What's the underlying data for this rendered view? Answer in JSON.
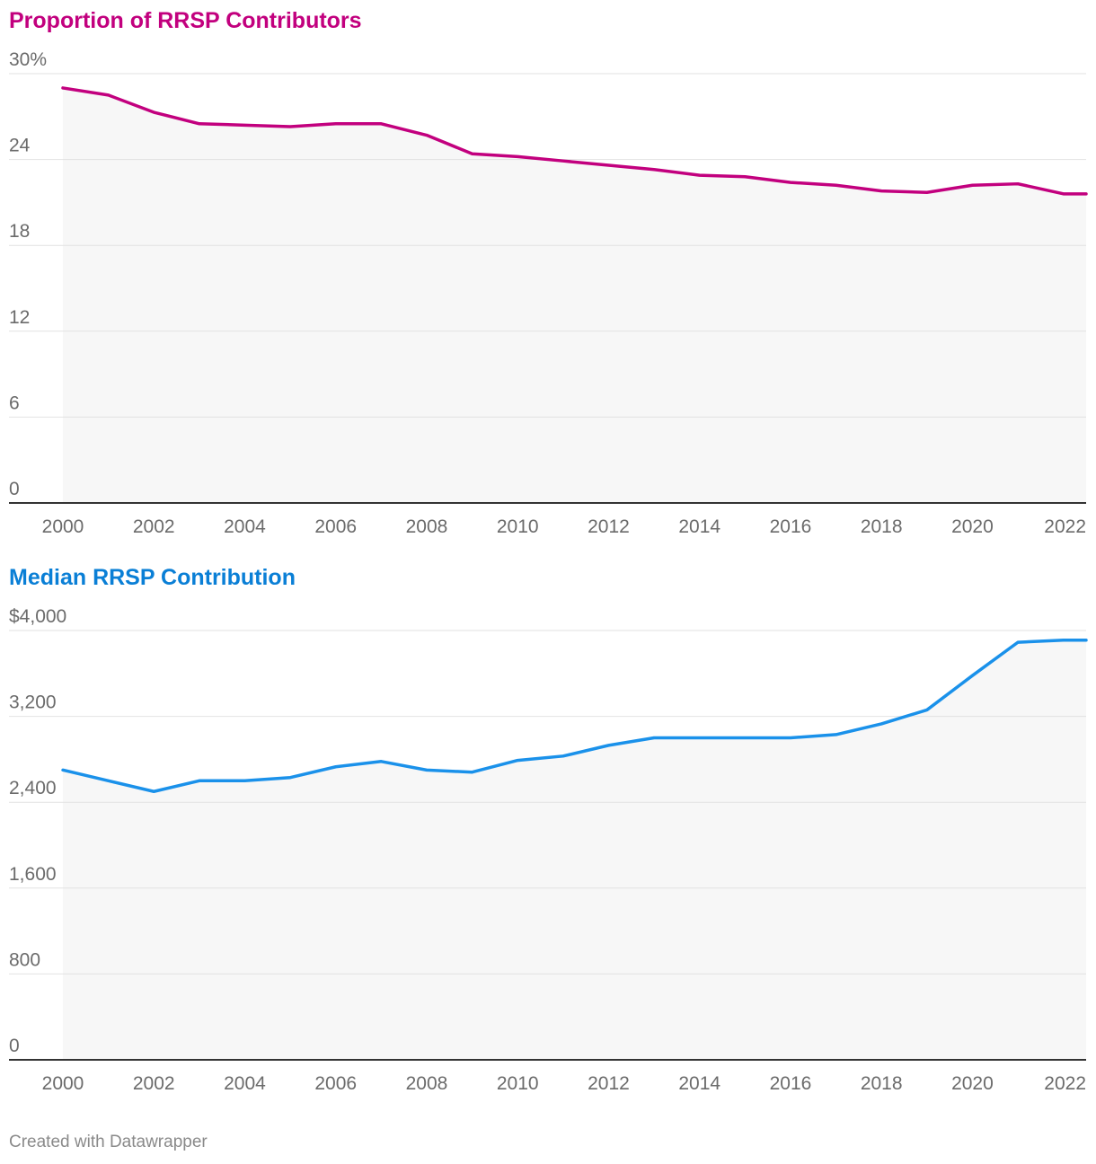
{
  "charts": [
    {
      "type": "line",
      "title": "Proportion of RRSP Contributors",
      "color": "#c2007e",
      "area_fill": "#f7f7f7",
      "x": [
        2000,
        2001,
        2002,
        2003,
        2004,
        2005,
        2006,
        2007,
        2008,
        2009,
        2010,
        2011,
        2012,
        2013,
        2014,
        2015,
        2016,
        2017,
        2018,
        2019,
        2020,
        2021,
        2022
      ],
      "series": [
        {
          "name": "Proportion of RRSP Contributors",
          "values": [
            29.0,
            28.5,
            27.3,
            26.5,
            26.4,
            26.3,
            26.5,
            26.5,
            25.7,
            24.4,
            24.2,
            23.9,
            23.6,
            23.3,
            22.9,
            22.8,
            22.4,
            22.2,
            21.8,
            21.7,
            22.2,
            22.3,
            21.6
          ]
        }
      ],
      "ylim": [
        0,
        30
      ],
      "y_ticks": [
        0,
        6,
        12,
        18,
        24,
        30
      ],
      "y_tick_labels": [
        "0",
        "6",
        "12",
        "18",
        "24",
        "30%"
      ],
      "x_ticks": [
        2000,
        2002,
        2004,
        2006,
        2008,
        2010,
        2012,
        2014,
        2016,
        2018,
        2020,
        2022
      ],
      "x_tick_labels": [
        "2000",
        "2002",
        "2004",
        "2006",
        "2008",
        "2010",
        "2012",
        "2014",
        "2016",
        "2018",
        "2020",
        "2022"
      ],
      "xlabel": "",
      "ylabel": "",
      "grid": true
    },
    {
      "type": "line",
      "title": "Median RRSP Contribution",
      "color": "#1a91ea",
      "area_fill": "#f7f7f7",
      "x": [
        2000,
        2001,
        2002,
        2003,
        2004,
        2005,
        2006,
        2007,
        2008,
        2009,
        2010,
        2011,
        2012,
        2013,
        2014,
        2015,
        2016,
        2017,
        2018,
        2019,
        2020,
        2021,
        2022
      ],
      "series": [
        {
          "name": "Median RRSP Contribution",
          "values": [
            2700,
            2600,
            2500,
            2600,
            2600,
            2630,
            2730,
            2780,
            2700,
            2680,
            2790,
            2830,
            2930,
            3000,
            3000,
            3000,
            3000,
            3030,
            3130,
            3260,
            3580,
            3890,
            3910
          ]
        }
      ],
      "ylim": [
        0,
        4000
      ],
      "y_ticks": [
        0,
        800,
        1600,
        2400,
        3200,
        4000
      ],
      "y_tick_labels": [
        "0",
        "800",
        "1,600",
        "2,400",
        "3,200",
        "$4,000"
      ],
      "x_ticks": [
        2000,
        2002,
        2004,
        2006,
        2008,
        2010,
        2012,
        2014,
        2016,
        2018,
        2020,
        2022
      ],
      "x_tick_labels": [
        "2000",
        "2002",
        "2004",
        "2006",
        "2008",
        "2010",
        "2012",
        "2014",
        "2016",
        "2018",
        "2020",
        "2022"
      ],
      "xlabel": "",
      "ylabel": "",
      "grid": true
    }
  ],
  "footer": {
    "credit": "Created with Datawrapper"
  }
}
